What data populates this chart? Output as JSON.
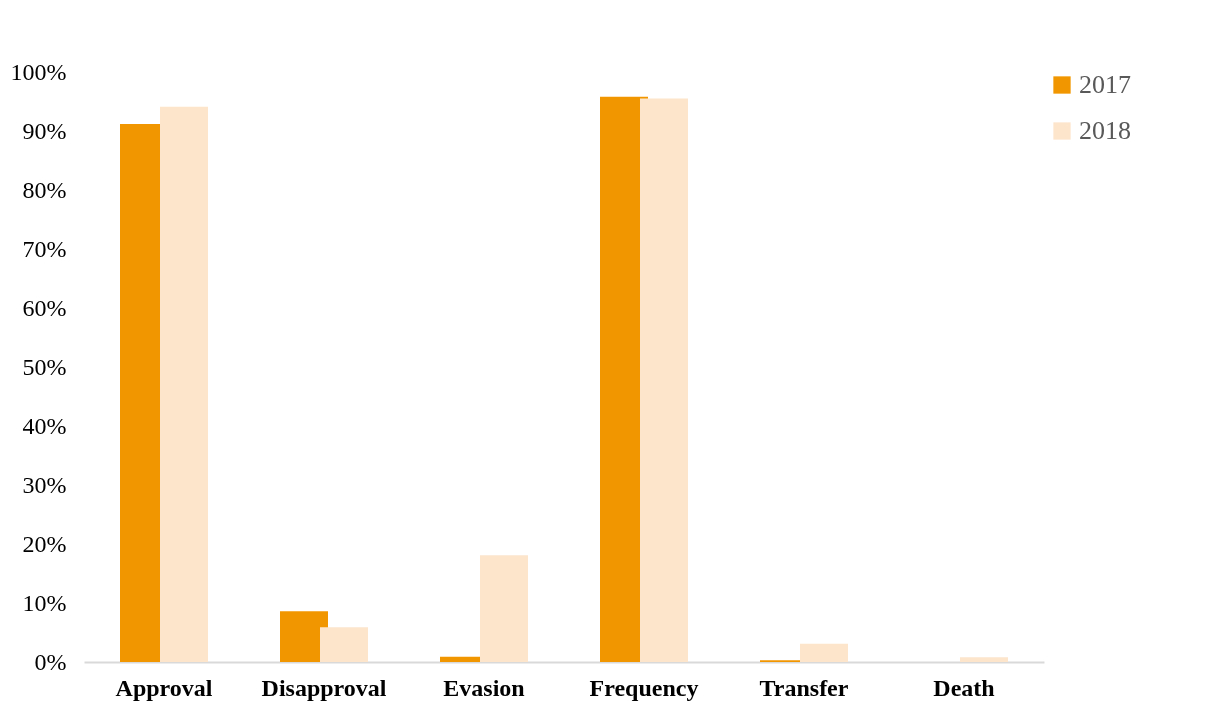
{
  "chart_data": {
    "type": "bar",
    "categories": [
      "Approval",
      "Disapproval",
      "Evasion",
      "Frequency",
      "Transfer",
      "Death"
    ],
    "series": [
      {
        "name": "2017",
        "color": "#f29600",
        "values": [
          91.2,
          8.6,
          0.9,
          95.8,
          0.3,
          0
        ]
      },
      {
        "name": "2018",
        "color": "#fde5cc",
        "values": [
          94.1,
          5.9,
          18.1,
          95.5,
          3.1,
          0.8
        ]
      }
    ],
    "ylim": [
      0,
      100
    ],
    "yticks": [
      {
        "value": 0,
        "label": "0%"
      },
      {
        "value": 10,
        "label": "10%"
      },
      {
        "value": 20,
        "label": "20%"
      },
      {
        "value": 30,
        "label": "30%"
      },
      {
        "value": 40,
        "label": "40%"
      },
      {
        "value": 50,
        "label": "50%"
      },
      {
        "value": 60,
        "label": "60%"
      },
      {
        "value": 70,
        "label": "70%"
      },
      {
        "value": 80,
        "label": "80%"
      },
      {
        "value": 90,
        "label": "90%"
      },
      {
        "value": 100,
        "label": "100%"
      }
    ],
    "grid": false,
    "legend": "right"
  }
}
